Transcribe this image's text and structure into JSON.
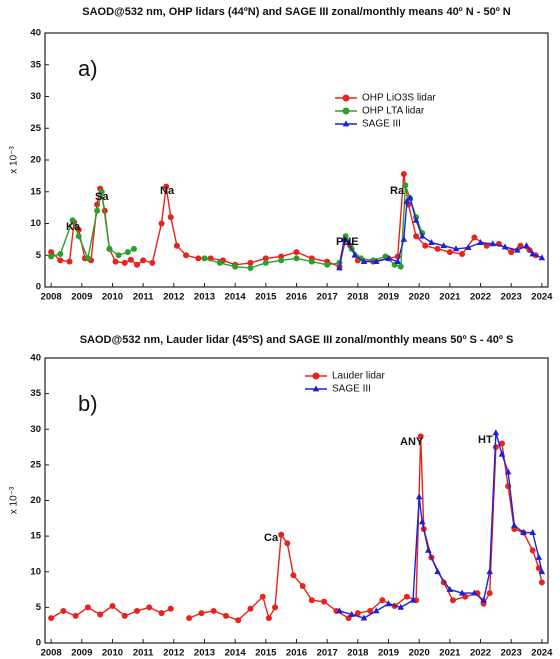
{
  "chart_data": [
    {
      "type": "line",
      "title": "SAOD@532 nm, OHP lidars (44ºN) and SAGE III zonal/monthly means 40º N - 50º N",
      "panel_label": "a)",
      "ylabel": "x 10⁻³",
      "annotations": [
        "Ka",
        "Sa",
        "Na",
        "PNE",
        "Ra"
      ],
      "legend": "upper right",
      "xlim": [
        2007.8,
        2024.2
      ],
      "ylim": [
        0,
        40
      ],
      "xticks": [
        2008,
        2009,
        2010,
        2011,
        2012,
        2013,
        2014,
        2015,
        2016,
        2017,
        2018,
        2019,
        2020,
        2021,
        2022,
        2023,
        2024
      ],
      "yticks": [
        0,
        5,
        10,
        15,
        20,
        25,
        30,
        35,
        40
      ],
      "series": [
        {
          "name": "OHP LiO3S lidar",
          "color": "#e8221c",
          "marker": "circle",
          "x": [
            2008.0,
            2008.3,
            2008.6,
            2008.75,
            2008.9,
            2009.1,
            2009.3,
            2009.5,
            2009.6,
            2009.75,
            2009.9,
            2010.1,
            2010.4,
            2010.6,
            2010.8,
            2011.0,
            2011.3,
            2011.6,
            2011.75,
            2011.9,
            2012.1,
            2012.4,
            2012.8,
            2013.2,
            2013.6,
            2014.0,
            2014.5,
            2015.0,
            2015.5,
            2016.0,
            2016.5,
            2017.0,
            2017.4,
            2017.6,
            2017.75,
            2018.0,
            2018.5,
            2019.0,
            2019.3,
            2019.5,
            2019.65,
            2019.9,
            2020.2,
            2020.6,
            2021.0,
            2021.4,
            2021.8,
            2022.2,
            2022.6,
            2023.0,
            2023.3,
            2023.6,
            2023.8
          ],
          "values": [
            5.5,
            4.2,
            4.0,
            10.2,
            9.0,
            4.5,
            4.2,
            13,
            15.5,
            12,
            6,
            4,
            3.8,
            4.3,
            3.5,
            4.2,
            3.8,
            10,
            15.8,
            11,
            6.5,
            5,
            4.5,
            4.5,
            4.2,
            3.5,
            3.8,
            4.5,
            4.8,
            5.5,
            4.5,
            4.0,
            3.2,
            7.5,
            6.5,
            4.2,
            4.0,
            4.5,
            4.8,
            17.8,
            13,
            8,
            6.5,
            6,
            5.5,
            5.2,
            7.8,
            6.5,
            6.8,
            5.5,
            6.5,
            5.8,
            5.0
          ]
        },
        {
          "name": "OHP LTA lidar",
          "color": "#2ca02c",
          "marker": "circle",
          "x": [
            2008.0,
            2008.3,
            2008.7,
            2008.9,
            2009.2,
            2009.5,
            2009.65,
            2009.9,
            2010.2,
            2010.5,
            2010.7,
            2011.8,
            2013.0,
            2013.5,
            2014.0,
            2014.5,
            2015.0,
            2015.5,
            2016.0,
            2016.5,
            2017.0,
            2017.4,
            2017.6,
            2017.8,
            2018.1,
            2018.5,
            2018.9,
            2019.2,
            2019.4,
            2019.55,
            2019.7,
            2019.9,
            2020.1
          ],
          "values": [
            4.8,
            5.2,
            10.5,
            8,
            4.5,
            12,
            15,
            6,
            5,
            5.5,
            6,
            null,
            4.5,
            3.8,
            3.2,
            3.0,
            3.8,
            4.2,
            4.5,
            4.0,
            3.5,
            3.8,
            8.0,
            6,
            4.5,
            4.2,
            4.8,
            3.5,
            3.2,
            16,
            14,
            11,
            8.5
          ]
        },
        {
          "name": "SAGE III",
          "color": "#1f1fd6",
          "marker": "triangle",
          "x": [
            2017.4,
            2017.55,
            2017.7,
            2017.9,
            2018.2,
            2018.6,
            2019.0,
            2019.3,
            2019.5,
            2019.6,
            2019.7,
            2019.9,
            2020.1,
            2020.4,
            2020.8,
            2021.2,
            2021.6,
            2022.0,
            2022.4,
            2022.8,
            2023.2,
            2023.5,
            2023.7,
            2024.0
          ],
          "values": [
            3.0,
            7.5,
            7.0,
            5.0,
            4.0,
            4.0,
            4.5,
            4.0,
            7.5,
            13.5,
            14.0,
            10.5,
            8,
            7,
            6.5,
            6.0,
            6.2,
            7.0,
            6.8,
            6.3,
            5.8,
            6.5,
            5.2,
            4.6
          ]
        }
      ]
    },
    {
      "type": "line",
      "title": "SAOD@532 nm, Lauder lidar (45ºS) and SAGE III zonal/monthly means 50º S - 40º S",
      "panel_label": "b)",
      "ylabel": "x 10⁻³",
      "annotations": [
        "Ca",
        "ANY",
        "HT"
      ],
      "legend": "upper center",
      "xlim": [
        2007.8,
        2024.2
      ],
      "ylim": [
        0,
        40
      ],
      "xticks": [
        2008,
        2009,
        2010,
        2011,
        2012,
        2013,
        2014,
        2015,
        2016,
        2017,
        2018,
        2019,
        2020,
        2021,
        2022,
        2023,
        2024
      ],
      "yticks": [
        0,
        5,
        10,
        15,
        20,
        25,
        30,
        35,
        40
      ],
      "series": [
        {
          "name": "Lauder lidar",
          "color": "#e8221c",
          "marker": "circle",
          "x": [
            2008.0,
            2008.4,
            2008.8,
            2009.2,
            2009.6,
            2010.0,
            2010.4,
            2010.8,
            2011.2,
            2011.6,
            2011.9,
            2012.2,
            2012.5,
            2012.9,
            2013.3,
            2013.7,
            2014.1,
            2014.5,
            2014.9,
            2015.1,
            2015.3,
            2015.5,
            2015.7,
            2015.9,
            2016.2,
            2016.5,
            2016.9,
            2017.3,
            2017.7,
            2018.0,
            2018.4,
            2018.8,
            2019.2,
            2019.6,
            2019.9,
            2020.05,
            2020.15,
            2020.4,
            2020.8,
            2021.1,
            2021.5,
            2021.9,
            2022.1,
            2022.3,
            2022.5,
            2022.7,
            2022.9,
            2023.1,
            2023.4,
            2023.7,
            2023.9,
            2024.0
          ],
          "values": [
            3.5,
            4.5,
            3.8,
            5.0,
            4.0,
            5.2,
            3.8,
            4.5,
            5.0,
            4.2,
            4.8,
            null,
            3.5,
            4.2,
            4.5,
            3.8,
            3.2,
            4.8,
            6.5,
            3.5,
            5.0,
            15.2,
            14,
            9.5,
            8.0,
            6,
            5.8,
            4.5,
            3.5,
            4.2,
            4.5,
            6.0,
            5.2,
            6.5,
            6.0,
            29,
            16,
            12,
            8.5,
            6,
            6.5,
            7,
            5.5,
            7,
            27.5,
            28,
            22,
            16,
            15.5,
            13,
            10.5,
            8.5
          ]
        },
        {
          "name": "SAGE III",
          "color": "#1f1fd6",
          "marker": "triangle",
          "x": [
            2017.4,
            2017.8,
            2018.2,
            2018.6,
            2019.0,
            2019.4,
            2019.8,
            2020.0,
            2020.1,
            2020.3,
            2020.6,
            2021.0,
            2021.4,
            2021.8,
            2022.1,
            2022.3,
            2022.5,
            2022.7,
            2022.9,
            2023.1,
            2023.4,
            2023.7,
            2023.9,
            2024.0
          ],
          "values": [
            4.5,
            4.0,
            3.5,
            4.5,
            5.5,
            5.0,
            6.0,
            20.5,
            17,
            13,
            10,
            7.5,
            7,
            7,
            6.0,
            10,
            29.5,
            26.5,
            24,
            16.5,
            15.5,
            15.5,
            12,
            10
          ]
        }
      ]
    }
  ]
}
